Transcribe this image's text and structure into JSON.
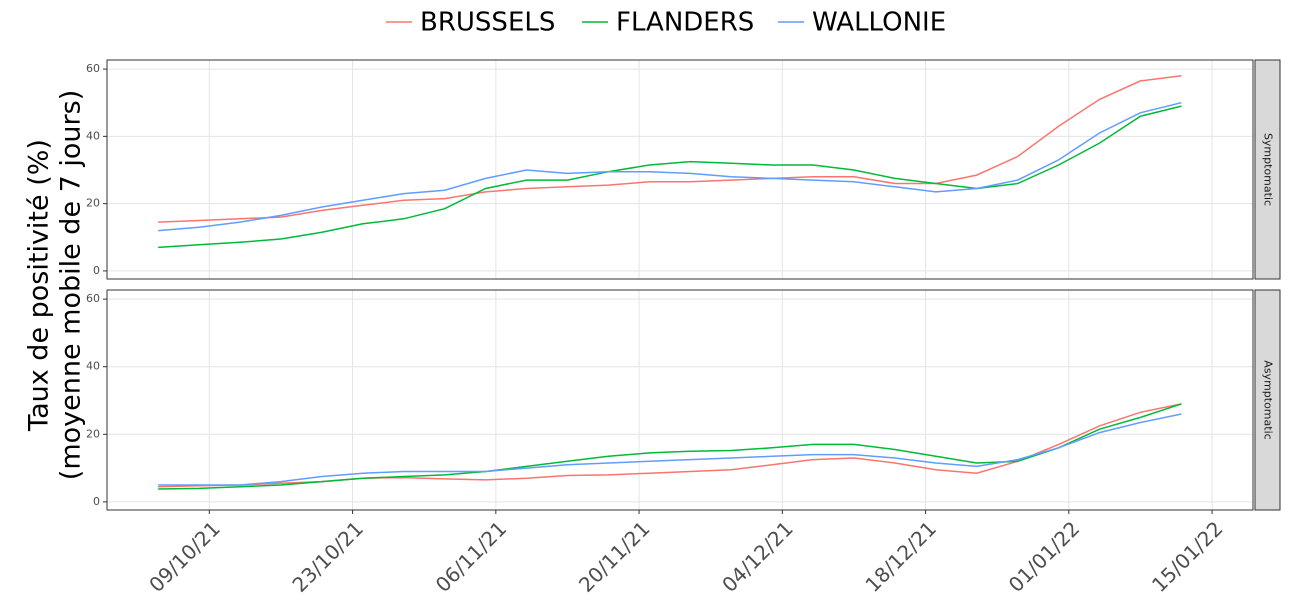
{
  "chart_data": [
    {
      "type": "line",
      "title": "Symptomatic",
      "ylabel": [
        "Taux de positivité (%)",
        "(moyenne mobile de 7 jours)"
      ],
      "x": [
        "04/10/21",
        "08/10/21",
        "12/10/21",
        "16/10/21",
        "20/10/21",
        "24/10/21",
        "28/10/21",
        "01/11/21",
        "05/11/21",
        "09/11/21",
        "13/11/21",
        "17/11/21",
        "21/11/21",
        "25/11/21",
        "29/11/21",
        "03/12/21",
        "07/12/21",
        "11/12/21",
        "15/12/21",
        "19/12/21",
        "23/12/21",
        "27/12/21",
        "31/12/21",
        "04/01/22",
        "08/01/22",
        "12/01/22"
      ],
      "series": [
        {
          "name": "BRUSSELS",
          "color": "#F8766D",
          "values": [
            14.5,
            15,
            15.5,
            16,
            18,
            19.5,
            21,
            21.5,
            23.5,
            24.5,
            25,
            25.5,
            26.5,
            26.5,
            27,
            27.5,
            28,
            28,
            26,
            26,
            28.5,
            34,
            43,
            51,
            56.5,
            58
          ]
        },
        {
          "name": "FLANDERS",
          "color": "#00BA38",
          "values": [
            7,
            7.8,
            8.5,
            9.5,
            11.5,
            14,
            15.5,
            18.5,
            24.5,
            27,
            27,
            29.5,
            31.5,
            32.5,
            32,
            31.5,
            31.5,
            30,
            27.5,
            26,
            24.5,
            26,
            31.5,
            38,
            46,
            49
          ]
        },
        {
          "name": "WALLONIE",
          "color": "#619CFF",
          "values": [
            12,
            13,
            14.5,
            16.5,
            19,
            21,
            23,
            24,
            27.5,
            30,
            29,
            29.5,
            29.5,
            29,
            28,
            27.5,
            27,
            26.5,
            25,
            23.5,
            24.5,
            27,
            33,
            41,
            47,
            50
          ]
        }
      ],
      "xlim": [
        "29/09/21",
        "19/01/22"
      ],
      "xticks": [
        "09/10/21",
        "23/10/21",
        "06/11/21",
        "20/11/21",
        "04/12/21",
        "18/12/21",
        "01/01/22",
        "15/01/22"
      ],
      "ylim": [
        -2.4,
        62.7
      ],
      "yticks": [
        0,
        20,
        40,
        60
      ],
      "grid": true
    },
    {
      "type": "line",
      "title": "Asymptomatic",
      "x": [
        "04/10/21",
        "08/10/21",
        "12/10/21",
        "16/10/21",
        "20/10/21",
        "24/10/21",
        "28/10/21",
        "01/11/21",
        "05/11/21",
        "09/11/21",
        "13/11/21",
        "17/11/21",
        "21/11/21",
        "25/11/21",
        "29/11/21",
        "03/12/21",
        "07/12/21",
        "11/12/21",
        "15/12/21",
        "19/12/21",
        "23/12/21",
        "27/12/21",
        "31/12/21",
        "04/01/22",
        "08/01/22",
        "12/01/22"
      ],
      "series": [
        {
          "color": "#F8766D",
          "values": [
            4.5,
            4.8,
            5,
            5.5,
            6,
            7,
            7.2,
            6.8,
            6.5,
            7,
            7.8,
            8,
            8.5,
            9,
            9.5,
            11,
            12.5,
            13,
            11.5,
            9.5,
            8.5,
            12,
            17,
            22.5,
            26.5,
            29
          ]
        },
        {
          "color": "#00BA38",
          "values": [
            3.8,
            4,
            4.5,
            5,
            6,
            7,
            7.5,
            8,
            9,
            10.5,
            12,
            13.5,
            14.5,
            15,
            15.2,
            16,
            17,
            17,
            15.5,
            13.5,
            11.5,
            12,
            16,
            21.5,
            25,
            29
          ]
        },
        {
          "color": "#619CFF",
          "values": [
            5,
            5,
            5,
            6,
            7.5,
            8.5,
            9,
            9,
            9,
            10,
            11,
            11.5,
            12,
            12.5,
            13,
            13.5,
            14,
            14,
            13,
            11.5,
            10.5,
            12.5,
            16,
            20.5,
            23.5,
            26
          ]
        }
      ],
      "xlim": [
        "29/09/21",
        "19/01/22"
      ],
      "xticks": [
        "09/10/21",
        "23/10/21",
        "06/11/21",
        "20/11/21",
        "04/12/21",
        "18/12/21",
        "01/01/22",
        "15/01/22"
      ],
      "ylim": [
        -2.4,
        62.7
      ],
      "yticks": [
        0,
        20,
        40,
        60
      ],
      "grid": true
    }
  ]
}
